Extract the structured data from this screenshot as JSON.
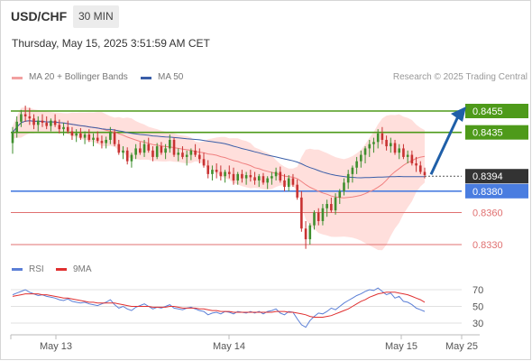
{
  "header": {
    "symbol": "USD/CHF",
    "timeframe": "30 MIN",
    "datetime": "Thursday, May 15, 2025 3:51:59 AM CET"
  },
  "legend": {
    "ma20_bb": "MA 20 + Bollinger Bands",
    "ma50": "MA 50",
    "rsi": "RSI",
    "rsi_ma": "9MA",
    "copyright": "Research © 2025 Trading Central"
  },
  "colors": {
    "bollinger_fill": "#ffd9d6",
    "ma20": "#f08080",
    "ma50": "#3a5ea8",
    "candle_up": "#3f8f2e",
    "candle_down": "#c83232",
    "resistance": "#4e9a1a",
    "pivot": "#4a7de0",
    "support": "#e07070",
    "current_price": "#333333",
    "rsi": "#5b7fd6",
    "rsi_ma": "#e03030",
    "arrow": "#1f5fa8"
  },
  "chart_data": [
    {
      "type": "candlestick",
      "title": "USD/CHF",
      "x_ticks": [
        "May 13",
        "May 14",
        "May 15",
        "May 25"
      ],
      "ylim": [
        0.8325,
        0.8465
      ],
      "current_price": 0.8394,
      "levels": [
        {
          "label": "0.8455",
          "value": 0.8455,
          "kind": "resistance"
        },
        {
          "label": "0.8435",
          "value": 0.8435,
          "kind": "resistance"
        },
        {
          "label": "0.8380",
          "value": 0.838,
          "kind": "pivot"
        },
        {
          "label": "0.8360",
          "value": 0.836,
          "kind": "support"
        },
        {
          "label": "0.8330",
          "value": 0.833,
          "kind": "support"
        }
      ],
      "projection": {
        "from": 0.8394,
        "to": 0.8455
      },
      "ohlc": [
        [
          0.8425,
          0.844,
          0.8415,
          0.8435
        ],
        [
          0.8435,
          0.845,
          0.843,
          0.8445
        ],
        [
          0.8445,
          0.8456,
          0.844,
          0.8452
        ],
        [
          0.8452,
          0.846,
          0.8445,
          0.845
        ],
        [
          0.845,
          0.8458,
          0.8442,
          0.8448
        ],
        [
          0.8448,
          0.8452,
          0.8438,
          0.8442
        ],
        [
          0.8442,
          0.845,
          0.8436,
          0.8446
        ],
        [
          0.8446,
          0.8452,
          0.844,
          0.8444
        ],
        [
          0.8444,
          0.845,
          0.8438,
          0.8441
        ],
        [
          0.8441,
          0.8448,
          0.8436,
          0.8446
        ],
        [
          0.8446,
          0.8452,
          0.844,
          0.8442
        ],
        [
          0.8442,
          0.8447,
          0.8434,
          0.8438
        ],
        [
          0.8438,
          0.8444,
          0.8432,
          0.844
        ],
        [
          0.844,
          0.8446,
          0.8434,
          0.8436
        ],
        [
          0.8436,
          0.844,
          0.8428,
          0.8432
        ],
        [
          0.8432,
          0.8438,
          0.8426,
          0.8434
        ],
        [
          0.8434,
          0.8439,
          0.8428,
          0.843
        ],
        [
          0.843,
          0.8436,
          0.8424,
          0.8433
        ],
        [
          0.8433,
          0.8438,
          0.8426,
          0.8428
        ],
        [
          0.8428,
          0.8434,
          0.8422,
          0.843
        ],
        [
          0.843,
          0.8436,
          0.8425,
          0.8427
        ],
        [
          0.8427,
          0.8432,
          0.842,
          0.8425
        ],
        [
          0.8425,
          0.8431,
          0.842,
          0.8428
        ],
        [
          0.8428,
          0.844,
          0.8424,
          0.8435
        ],
        [
          0.8435,
          0.8438,
          0.8422,
          0.8424
        ],
        [
          0.8424,
          0.8428,
          0.8414,
          0.8416
        ],
        [
          0.8416,
          0.8422,
          0.841,
          0.8418
        ],
        [
          0.8418,
          0.8421,
          0.8405,
          0.8408
        ],
        [
          0.8408,
          0.8416,
          0.8402,
          0.8414
        ],
        [
          0.8414,
          0.8424,
          0.841,
          0.842
        ],
        [
          0.842,
          0.8426,
          0.8414,
          0.8416
        ],
        [
          0.8416,
          0.8428,
          0.8412,
          0.8424
        ],
        [
          0.8424,
          0.843,
          0.8416,
          0.8418
        ],
        [
          0.8418,
          0.8422,
          0.8408,
          0.8412
        ],
        [
          0.8412,
          0.8425,
          0.841,
          0.8422
        ],
        [
          0.8422,
          0.8426,
          0.8414,
          0.8416
        ],
        [
          0.8416,
          0.8424,
          0.841,
          0.842
        ],
        [
          0.842,
          0.8433,
          0.8416,
          0.8428
        ],
        [
          0.8428,
          0.843,
          0.8412,
          0.8414
        ],
        [
          0.8414,
          0.842,
          0.8408,
          0.8416
        ],
        [
          0.8416,
          0.8422,
          0.841,
          0.8412
        ],
        [
          0.8412,
          0.8418,
          0.8404,
          0.8414
        ],
        [
          0.8414,
          0.842,
          0.8409,
          0.8418
        ],
        [
          0.8418,
          0.8424,
          0.8412,
          0.8414
        ],
        [
          0.8414,
          0.842,
          0.8406,
          0.841
        ],
        [
          0.841,
          0.8416,
          0.8402,
          0.8404
        ],
        [
          0.8404,
          0.8409,
          0.8392,
          0.8396
        ],
        [
          0.8396,
          0.8404,
          0.839,
          0.84
        ],
        [
          0.84,
          0.8406,
          0.8392,
          0.8398
        ],
        [
          0.8398,
          0.8404,
          0.839,
          0.8394
        ],
        [
          0.8394,
          0.84,
          0.8388,
          0.8398
        ],
        [
          0.8398,
          0.8404,
          0.8392,
          0.8396
        ],
        [
          0.8396,
          0.8402,
          0.8386,
          0.839
        ],
        [
          0.839,
          0.8398,
          0.8386,
          0.8396
        ],
        [
          0.8396,
          0.84,
          0.8388,
          0.8392
        ],
        [
          0.8392,
          0.8398,
          0.8386,
          0.8395
        ],
        [
          0.8395,
          0.84,
          0.8389,
          0.8393
        ],
        [
          0.8393,
          0.8398,
          0.8386,
          0.839
        ],
        [
          0.839,
          0.8396,
          0.8384,
          0.8394
        ],
        [
          0.8394,
          0.8397,
          0.8386,
          0.8388
        ],
        [
          0.8388,
          0.8394,
          0.8382,
          0.8392
        ],
        [
          0.8392,
          0.8398,
          0.8386,
          0.8394
        ],
        [
          0.8394,
          0.8402,
          0.839,
          0.8398
        ],
        [
          0.8398,
          0.8403,
          0.8388,
          0.839
        ],
        [
          0.839,
          0.8396,
          0.838,
          0.8384
        ],
        [
          0.8384,
          0.8395,
          0.838,
          0.8392
        ],
        [
          0.8392,
          0.8396,
          0.8384,
          0.8386
        ],
        [
          0.8386,
          0.8391,
          0.8372,
          0.8374
        ],
        [
          0.8374,
          0.838,
          0.8342,
          0.8345
        ],
        [
          0.8345,
          0.8352,
          0.8326,
          0.8335
        ],
        [
          0.8335,
          0.835,
          0.833,
          0.8348
        ],
        [
          0.8348,
          0.8362,
          0.8344,
          0.836
        ],
        [
          0.836,
          0.8364,
          0.8348,
          0.8352
        ],
        [
          0.8352,
          0.8368,
          0.8348,
          0.8364
        ],
        [
          0.8364,
          0.8372,
          0.8356,
          0.8368
        ],
        [
          0.8368,
          0.8374,
          0.836,
          0.8362
        ],
        [
          0.8362,
          0.8378,
          0.8358,
          0.8374
        ],
        [
          0.8374,
          0.8382,
          0.8368,
          0.838
        ],
        [
          0.838,
          0.8392,
          0.8376,
          0.8388
        ],
        [
          0.8388,
          0.84,
          0.8382,
          0.8396
        ],
        [
          0.8396,
          0.8404,
          0.8388,
          0.8402
        ],
        [
          0.8402,
          0.8412,
          0.8396,
          0.8408
        ],
        [
          0.8408,
          0.8418,
          0.8402,
          0.8414
        ],
        [
          0.8414,
          0.8422,
          0.8406,
          0.842
        ],
        [
          0.842,
          0.8428,
          0.8412,
          0.8424
        ],
        [
          0.8424,
          0.843,
          0.8416,
          0.8426
        ],
        [
          0.8426,
          0.8438,
          0.842,
          0.8434
        ],
        [
          0.8434,
          0.844,
          0.8424,
          0.8428
        ],
        [
          0.8428,
          0.8432,
          0.8418,
          0.8422
        ],
        [
          0.8422,
          0.843,
          0.8416,
          0.8425
        ],
        [
          0.8425,
          0.8428,
          0.8414,
          0.8416
        ],
        [
          0.8416,
          0.8424,
          0.841,
          0.842
        ],
        [
          0.842,
          0.8424,
          0.841,
          0.8412
        ],
        [
          0.8412,
          0.8418,
          0.8406,
          0.8414
        ],
        [
          0.8414,
          0.8418,
          0.8404,
          0.8406
        ],
        [
          0.8406,
          0.8412,
          0.8398,
          0.8404
        ],
        [
          0.8404,
          0.8408,
          0.8396,
          0.8398
        ],
        [
          0.8398,
          0.8402,
          0.8392,
          0.8395
        ]
      ]
    },
    {
      "type": "line",
      "series": [
        {
          "name": "RSI"
        },
        {
          "name": "9MA"
        }
      ],
      "y_ticks": [
        70,
        50,
        30
      ],
      "ylim": [
        20,
        80
      ],
      "rsi": [
        64,
        66,
        68,
        70,
        67,
        65,
        63,
        64,
        62,
        61,
        60,
        58,
        57,
        59,
        56,
        55,
        54,
        55,
        53,
        52,
        51,
        53,
        55,
        58,
        52,
        48,
        50,
        47,
        45,
        49,
        51,
        53,
        50,
        47,
        49,
        48,
        50,
        52,
        48,
        47,
        46,
        48,
        49,
        47,
        45,
        44,
        40,
        42,
        43,
        41,
        44,
        43,
        41,
        44,
        43,
        42,
        44,
        42,
        44,
        41,
        44,
        45,
        47,
        42,
        40,
        44,
        43,
        35,
        28,
        25,
        33,
        38,
        42,
        41,
        44,
        48,
        46,
        50,
        54,
        57,
        60,
        63,
        65,
        68,
        70,
        69,
        72,
        68,
        64,
        66,
        60,
        62,
        56,
        55,
        52,
        48,
        46,
        44
      ],
      "rsi_ma": [
        62,
        63,
        64,
        65,
        65,
        65,
        65,
        64,
        64,
        63,
        62,
        61,
        60,
        60,
        59,
        58,
        57,
        56,
        55,
        55,
        54,
        54,
        54,
        54,
        54,
        53,
        52,
        51,
        50,
        50,
        50,
        50,
        50,
        49,
        49,
        49,
        49,
        50,
        50,
        49,
        48,
        48,
        48,
        48,
        47,
        47,
        46,
        45,
        45,
        44,
        44,
        44,
        43,
        43,
        43,
        43,
        43,
        43,
        43,
        43,
        43,
        43,
        44,
        44,
        44,
        43,
        43,
        42,
        41,
        40,
        38,
        37,
        37,
        37,
        38,
        39,
        41,
        43,
        45,
        47,
        50,
        53,
        56,
        58,
        61,
        63,
        65,
        66,
        67,
        67,
        67,
        66,
        65,
        64,
        62,
        60,
        58,
        55
      ]
    }
  ]
}
